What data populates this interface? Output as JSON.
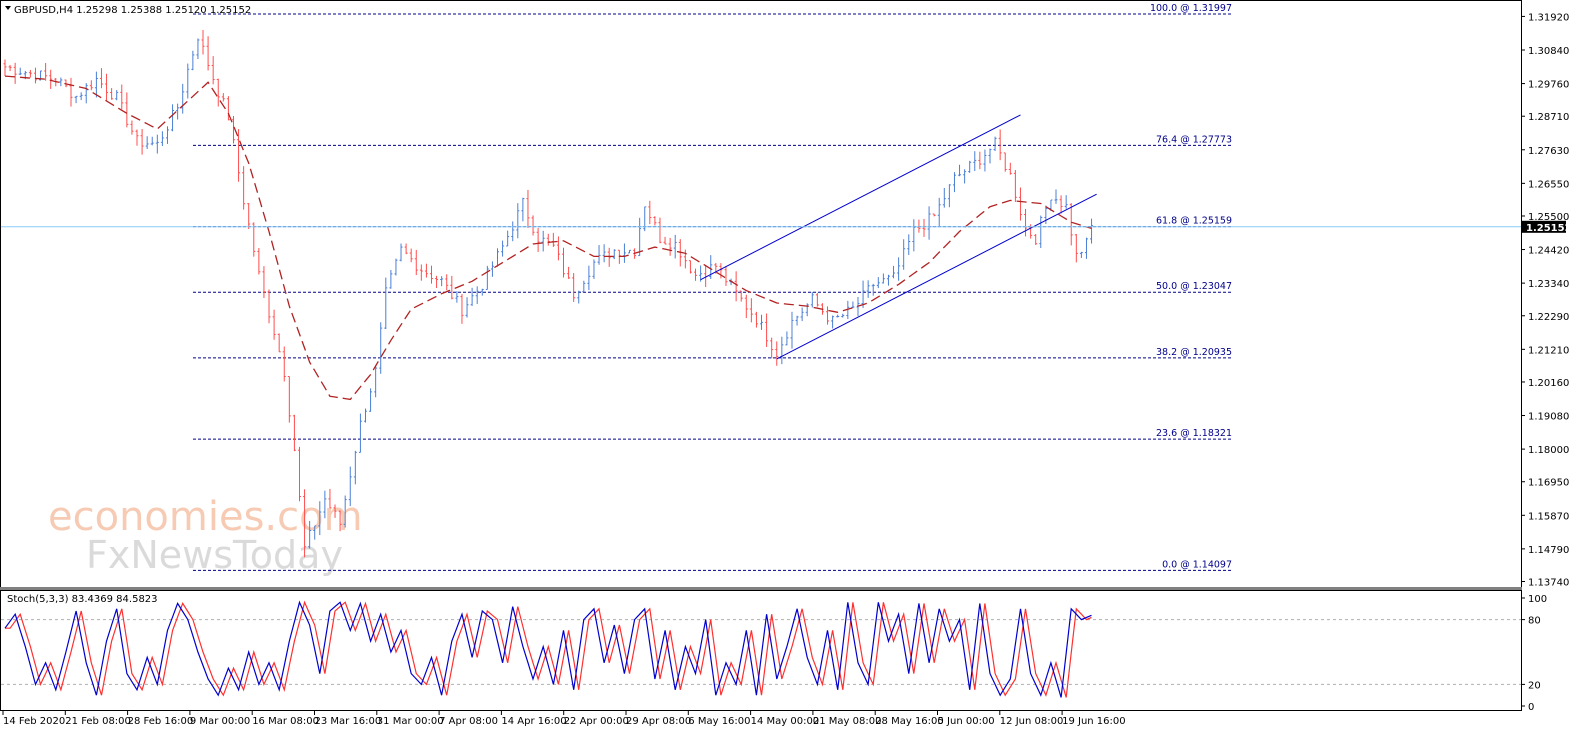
{
  "window": {
    "symbol_header": "GBPUSD,H4  1.25298 1.25388 1.25120 1.25152",
    "indicator_header": "Stoch(5,3,3) 83.4369 84.5823"
  },
  "watermark": {
    "line1": "economies.com",
    "line2": "FxNewsToday"
  },
  "colors": {
    "bull": "#4a7fd6",
    "bear": "#ff4d4d",
    "ma": "#b22222",
    "fib": "#00008b",
    "channel": "#0000cd",
    "price_line": "#87cefa",
    "stoch_main": "#0000cd",
    "stoch_signal": "#ff3030",
    "price_tag_bg": "#000000"
  },
  "chart_data": {
    "type": "line",
    "title": "",
    "price_axis": {
      "ylim": [
        1.1366,
        1.3232
      ],
      "ticks": [
        "1.31920",
        "1.30840",
        "1.29760",
        "1.28710",
        "1.27630",
        "1.26550",
        "1.25500",
        "1.24420",
        "1.23340",
        "1.22290",
        "1.21210",
        "1.20160",
        "1.19080",
        "1.18000",
        "1.16950",
        "1.15870",
        "1.14790",
        "1.13740"
      ],
      "current_price_label": "1.25152",
      "current_price": 1.25152
    },
    "x_axis": {
      "labels": [
        "14 Feb 2020",
        "21 Feb 08:00",
        "28 Feb 16:00",
        "9 Mar 00:00",
        "16 Mar 08:00",
        "23 Mar 16:00",
        "31 Mar 00:00",
        "7 Apr 08:00",
        "14 Apr 16:00",
        "22 Apr 00:00",
        "29 Apr 08:00",
        "6 May 16:00",
        "14 May 00:00",
        "21 May 08:00",
        "28 May 16:00",
        "5 Jun 00:00",
        "12 Jun 08:00",
        "19 Jun 16:00"
      ],
      "bar_count": 215
    },
    "series": [
      {
        "type": "close",
        "anchors": [
          [
            0,
            1.303
          ],
          [
            6,
            1.3005
          ],
          [
            10,
            1.299
          ],
          [
            14,
            1.2935
          ],
          [
            18,
            1.299
          ],
          [
            22,
            1.293
          ],
          [
            26,
            1.279
          ],
          [
            30,
            1.278
          ],
          [
            34,
            1.29
          ],
          [
            36,
            1.302
          ],
          [
            38,
            1.313
          ],
          [
            40,
            1.304
          ],
          [
            42,
            1.295
          ],
          [
            44,
            1.287
          ],
          [
            47,
            1.26
          ],
          [
            50,
            1.236
          ],
          [
            53,
            1.218
          ],
          [
            55,
            1.205
          ],
          [
            57,
            1.18
          ],
          [
            59,
            1.148
          ],
          [
            61,
            1.156
          ],
          [
            63,
            1.164
          ],
          [
            66,
            1.156
          ],
          [
            70,
            1.188
          ],
          [
            73,
            1.205
          ],
          [
            75,
            1.23
          ],
          [
            78,
            1.244
          ],
          [
            82,
            1.238
          ],
          [
            86,
            1.234
          ],
          [
            90,
            1.225
          ],
          [
            94,
            1.233
          ],
          [
            98,
            1.245
          ],
          [
            102,
            1.259
          ],
          [
            105,
            1.248
          ],
          [
            108,
            1.245
          ],
          [
            112,
            1.23
          ],
          [
            116,
            1.24
          ],
          [
            120,
            1.244
          ],
          [
            124,
            1.244
          ],
          [
            126,
            1.259
          ],
          [
            129,
            1.248
          ],
          [
            132,
            1.246
          ],
          [
            136,
            1.236
          ],
          [
            140,
            1.239
          ],
          [
            144,
            1.23
          ],
          [
            148,
            1.222
          ],
          [
            152,
            1.211
          ],
          [
            155,
            1.221
          ],
          [
            159,
            1.228
          ],
          [
            163,
            1.221
          ],
          [
            167,
            1.225
          ],
          [
            171,
            1.233
          ],
          [
            175,
            1.235
          ],
          [
            179,
            1.25
          ],
          [
            183,
            1.255
          ],
          [
            187,
            1.267
          ],
          [
            191,
            1.272
          ],
          [
            195,
            1.278
          ],
          [
            198,
            1.268
          ],
          [
            201,
            1.251
          ],
          [
            203,
            1.248
          ],
          [
            206,
            1.262
          ],
          [
            209,
            1.258
          ],
          [
            211,
            1.242
          ],
          [
            213,
            1.246
          ],
          [
            214,
            1.2515
          ]
        ]
      },
      {
        "type": "moving_average",
        "anchors": [
          [
            0,
            1.3
          ],
          [
            8,
            1.299
          ],
          [
            16,
            1.296
          ],
          [
            24,
            1.288
          ],
          [
            30,
            1.283
          ],
          [
            36,
            1.292
          ],
          [
            40,
            1.298
          ],
          [
            44,
            1.288
          ],
          [
            48,
            1.272
          ],
          [
            52,
            1.25
          ],
          [
            56,
            1.226
          ],
          [
            60,
            1.208
          ],
          [
            64,
            1.197
          ],
          [
            68,
            1.196
          ],
          [
            72,
            1.204
          ],
          [
            76,
            1.215
          ],
          [
            80,
            1.225
          ],
          [
            86,
            1.23
          ],
          [
            92,
            1.234
          ],
          [
            98,
            1.24
          ],
          [
            104,
            1.246
          ],
          [
            110,
            1.247
          ],
          [
            116,
            1.242
          ],
          [
            122,
            1.242
          ],
          [
            128,
            1.245
          ],
          [
            134,
            1.243
          ],
          [
            140,
            1.237
          ],
          [
            146,
            1.231
          ],
          [
            152,
            1.227
          ],
          [
            158,
            1.226
          ],
          [
            164,
            1.224
          ],
          [
            170,
            1.227
          ],
          [
            176,
            1.233
          ],
          [
            182,
            1.24
          ],
          [
            188,
            1.25
          ],
          [
            194,
            1.258
          ],
          [
            198,
            1.26
          ],
          [
            204,
            1.259
          ],
          [
            210,
            1.253
          ],
          [
            214,
            1.251
          ]
        ]
      }
    ],
    "fibonacci": [
      {
        "label": "100.0 @ 1.31997",
        "value": 1.31997
      },
      {
        "label": "76.4 @ 1.27773",
        "value": 1.27773
      },
      {
        "label": "61.8 @ 1.25159",
        "value": 1.25159
      },
      {
        "label": "50.0 @ 1.23047",
        "value": 1.23047
      },
      {
        "label": "38.2 @ 1.20935",
        "value": 1.20935
      },
      {
        "label": "23.6 @ 1.18321",
        "value": 1.18321
      },
      {
        "label": "0.0 @ 1.14097",
        "value": 1.14097
      }
    ],
    "channel": {
      "upper": [
        [
          137,
          1.2345
        ],
        [
          200,
          1.2875
        ]
      ],
      "lower": [
        [
          152,
          1.209
        ],
        [
          215,
          1.262
        ]
      ]
    },
    "stochastic": {
      "ylim": [
        0,
        100
      ],
      "ticks": [
        "100",
        "80",
        "20",
        "0"
      ],
      "levels": [
        80,
        20
      ],
      "main_anchors": [
        [
          0,
          72
        ],
        [
          2,
          85
        ],
        [
          4,
          55
        ],
        [
          6,
          20
        ],
        [
          8,
          40
        ],
        [
          10,
          15
        ],
        [
          12,
          50
        ],
        [
          14,
          88
        ],
        [
          16,
          40
        ],
        [
          18,
          10
        ],
        [
          20,
          60
        ],
        [
          22,
          90
        ],
        [
          24,
          30
        ],
        [
          26,
          15
        ],
        [
          28,
          45
        ],
        [
          30,
          20
        ],
        [
          32,
          70
        ],
        [
          34,
          95
        ],
        [
          36,
          80
        ],
        [
          38,
          50
        ],
        [
          40,
          25
        ],
        [
          42,
          10
        ],
        [
          44,
          35
        ],
        [
          46,
          15
        ],
        [
          48,
          50
        ],
        [
          50,
          20
        ],
        [
          52,
          40
        ],
        [
          54,
          15
        ],
        [
          56,
          60
        ],
        [
          58,
          96
        ],
        [
          60,
          75
        ],
        [
          62,
          30
        ],
        [
          64,
          88
        ],
        [
          66,
          96
        ],
        [
          68,
          70
        ],
        [
          70,
          95
        ],
        [
          72,
          60
        ],
        [
          74,
          85
        ],
        [
          76,
          50
        ],
        [
          78,
          70
        ],
        [
          80,
          30
        ],
        [
          82,
          20
        ],
        [
          84,
          45
        ],
        [
          86,
          10
        ],
        [
          88,
          60
        ],
        [
          90,
          85
        ],
        [
          92,
          45
        ],
        [
          94,
          88
        ],
        [
          96,
          80
        ],
        [
          98,
          40
        ],
        [
          100,
          92
        ],
        [
          102,
          55
        ],
        [
          104,
          25
        ],
        [
          106,
          55
        ],
        [
          108,
          20
        ],
        [
          110,
          70
        ],
        [
          112,
          15
        ],
        [
          114,
          80
        ],
        [
          116,
          90
        ],
        [
          118,
          40
        ],
        [
          120,
          75
        ],
        [
          122,
          30
        ],
        [
          124,
          80
        ],
        [
          126,
          90
        ],
        [
          128,
          25
        ],
        [
          130,
          70
        ],
        [
          132,
          15
        ],
        [
          134,
          55
        ],
        [
          136,
          30
        ],
        [
          138,
          80
        ],
        [
          140,
          10
        ],
        [
          142,
          40
        ],
        [
          144,
          20
        ],
        [
          146,
          70
        ],
        [
          148,
          10
        ],
        [
          150,
          85
        ],
        [
          152,
          25
        ],
        [
          154,
          55
        ],
        [
          156,
          90
        ],
        [
          158,
          45
        ],
        [
          160,
          20
        ],
        [
          162,
          70
        ],
        [
          164,
          15
        ],
        [
          166,
          96
        ],
        [
          168,
          40
        ],
        [
          170,
          20
        ],
        [
          172,
          96
        ],
        [
          174,
          60
        ],
        [
          176,
          85
        ],
        [
          178,
          30
        ],
        [
          180,
          95
        ],
        [
          182,
          40
        ],
        [
          184,
          90
        ],
        [
          186,
          60
        ],
        [
          188,
          80
        ],
        [
          190,
          15
        ],
        [
          192,
          95
        ],
        [
          194,
          30
        ],
        [
          196,
          10
        ],
        [
          198,
          25
        ],
        [
          200,
          90
        ],
        [
          202,
          30
        ],
        [
          204,
          10
        ],
        [
          206,
          40
        ],
        [
          208,
          8
        ],
        [
          210,
          90
        ],
        [
          212,
          80
        ],
        [
          214,
          84
        ]
      ],
      "signal_lag": 1
    }
  }
}
